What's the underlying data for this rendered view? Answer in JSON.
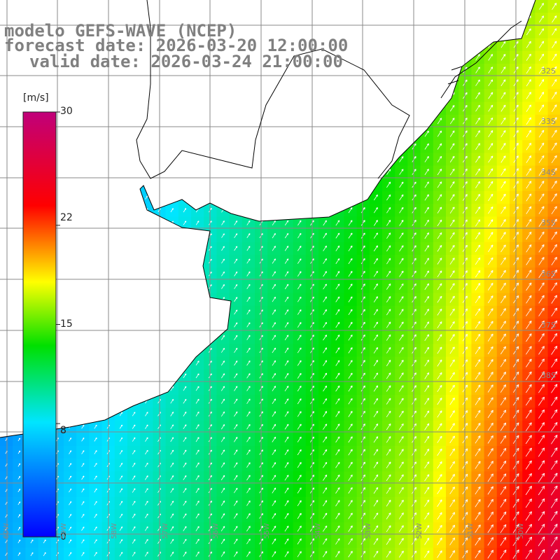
{
  "title": {
    "line1": "modelo GEFS-WAVE (NCEP)",
    "line2": "forecast date: 2026-03-20 12:00:00",
    "line3": "valid date: 2026-03-24 21:00:00"
  },
  "colorbar": {
    "unit": "[m/s]",
    "min": 0,
    "max": 30,
    "ticks": [
      "30",
      "22",
      "15",
      "8",
      "0"
    ],
    "tick_values": [
      30,
      22,
      15,
      8,
      0
    ],
    "colors": [
      "#0000ff",
      "#00e5ff",
      "#00e000",
      "#ffff00",
      "#ff0000",
      "#c0007a"
    ]
  },
  "map": {
    "lat_labels": [
      "32S",
      "33S",
      "34S",
      "35S",
      "36S",
      "37S",
      "38S"
    ],
    "lon_labels": [
      "60W",
      "59W",
      "58W",
      "57W",
      "56W",
      "55W",
      "54W",
      "53W",
      "52W",
      "51W",
      "50W"
    ],
    "land_color": "#ffffff",
    "arrow_color": "#ffffff"
  }
}
